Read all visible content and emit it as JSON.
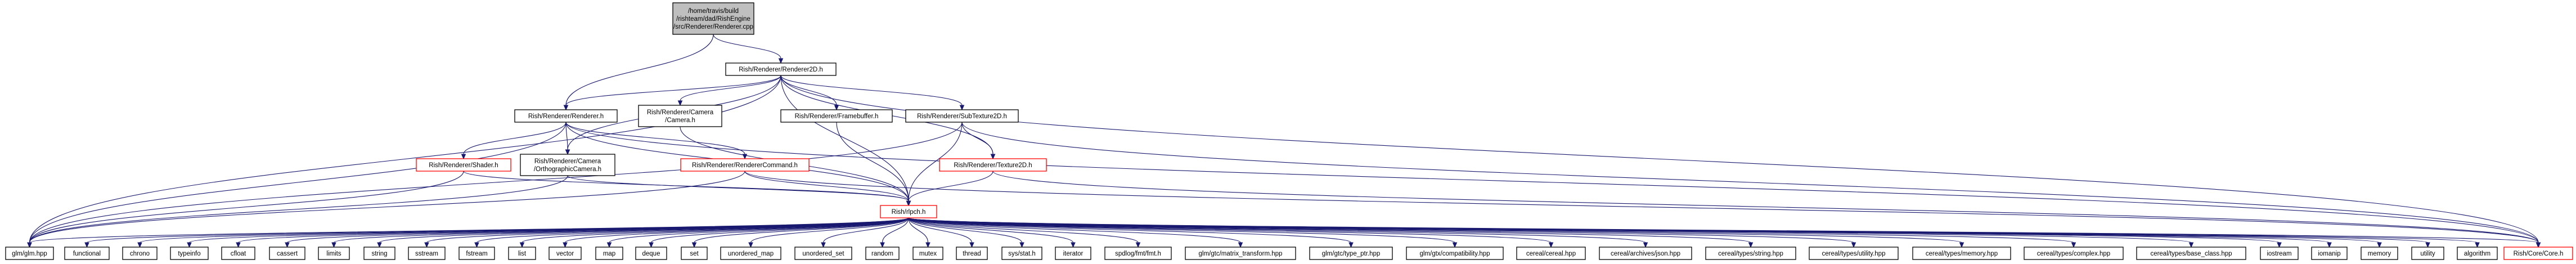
{
  "graph": {
    "root": "root",
    "nodes": [
      {
        "id": "root",
        "lines": [
          "/home/travis/build",
          "/rishteam/dad/RishEngine",
          "/src/Renderer/Renderer.cpp"
        ],
        "style": "root"
      },
      {
        "id": "renderer2d",
        "lines": [
          "Rish/Renderer/Renderer2D.h"
        ],
        "style": "normal"
      },
      {
        "id": "renderer",
        "lines": [
          "Rish/Renderer/Renderer.h"
        ],
        "style": "normal"
      },
      {
        "id": "camera",
        "lines": [
          "Rish/Renderer/Camera",
          "/Camera.h"
        ],
        "style": "normal"
      },
      {
        "id": "framebuffer",
        "lines": [
          "Rish/Renderer/Framebuffer.h"
        ],
        "style": "normal"
      },
      {
        "id": "subtexture",
        "lines": [
          "Rish/Renderer/SubTexture2D.h"
        ],
        "style": "normal"
      },
      {
        "id": "shader",
        "lines": [
          "Rish/Renderer/Shader.h"
        ],
        "style": "red"
      },
      {
        "id": "orthocam",
        "lines": [
          "Rish/Renderer/Camera",
          "/OrthographicCamera.h"
        ],
        "style": "normal"
      },
      {
        "id": "rendercmd",
        "lines": [
          "Rish/Renderer/RendererCommand.h"
        ],
        "style": "red"
      },
      {
        "id": "texture2d",
        "lines": [
          "Rish/Renderer/Texture2D.h"
        ],
        "style": "red"
      },
      {
        "id": "rlpch",
        "lines": [
          "Rish/rlpch.h"
        ],
        "style": "red"
      },
      {
        "id": "glm",
        "lines": [
          "glm/glm.hpp"
        ],
        "style": "normal"
      },
      {
        "id": "functional",
        "lines": [
          "functional"
        ],
        "style": "normal"
      },
      {
        "id": "chrono",
        "lines": [
          "chrono"
        ],
        "style": "normal"
      },
      {
        "id": "typeinfo",
        "lines": [
          "typeinfo"
        ],
        "style": "normal"
      },
      {
        "id": "cfloat",
        "lines": [
          "cfloat"
        ],
        "style": "normal"
      },
      {
        "id": "cassert",
        "lines": [
          "cassert"
        ],
        "style": "normal"
      },
      {
        "id": "limits",
        "lines": [
          "limits"
        ],
        "style": "normal"
      },
      {
        "id": "string",
        "lines": [
          "string"
        ],
        "style": "normal"
      },
      {
        "id": "sstream",
        "lines": [
          "sstream"
        ],
        "style": "normal"
      },
      {
        "id": "fstream",
        "lines": [
          "fstream"
        ],
        "style": "normal"
      },
      {
        "id": "list",
        "lines": [
          "list"
        ],
        "style": "normal"
      },
      {
        "id": "vector",
        "lines": [
          "vector"
        ],
        "style": "normal"
      },
      {
        "id": "map",
        "lines": [
          "map"
        ],
        "style": "normal"
      },
      {
        "id": "deque",
        "lines": [
          "deque"
        ],
        "style": "normal"
      },
      {
        "id": "set",
        "lines": [
          "set"
        ],
        "style": "normal"
      },
      {
        "id": "unordered_map",
        "lines": [
          "unordered_map"
        ],
        "style": "normal"
      },
      {
        "id": "unordered_set",
        "lines": [
          "unordered_set"
        ],
        "style": "normal"
      },
      {
        "id": "random",
        "lines": [
          "random"
        ],
        "style": "normal"
      },
      {
        "id": "mutex",
        "lines": [
          "mutex"
        ],
        "style": "normal"
      },
      {
        "id": "thread",
        "lines": [
          "thread"
        ],
        "style": "normal"
      },
      {
        "id": "sysstat",
        "lines": [
          "sys/stat.h"
        ],
        "style": "normal"
      },
      {
        "id": "iterator",
        "lines": [
          "iterator"
        ],
        "style": "normal"
      },
      {
        "id": "spdlog",
        "lines": [
          "spdlog/fmt/fmt.h"
        ],
        "style": "normal"
      },
      {
        "id": "glmmt",
        "lines": [
          "glm/gtc/matrix_transform.hpp"
        ],
        "style": "normal"
      },
      {
        "id": "glmtypeptr",
        "lines": [
          "glm/gtc/type_ptr.hpp"
        ],
        "style": "normal"
      },
      {
        "id": "glmcompat",
        "lines": [
          "glm/gtx/compatibility.hpp"
        ],
        "style": "normal"
      },
      {
        "id": "cereal",
        "lines": [
          "cereal/cereal.hpp"
        ],
        "style": "normal"
      },
      {
        "id": "cerealjson",
        "lines": [
          "cereal/archives/json.hpp"
        ],
        "style": "normal"
      },
      {
        "id": "cerealstring",
        "lines": [
          "cereal/types/string.hpp"
        ],
        "style": "normal"
      },
      {
        "id": "cerealutility",
        "lines": [
          "cereal/types/utility.hpp"
        ],
        "style": "normal"
      },
      {
        "id": "cerealmemory",
        "lines": [
          "cereal/types/memory.hpp"
        ],
        "style": "normal"
      },
      {
        "id": "cerealcomplex",
        "lines": [
          "cereal/types/complex.hpp"
        ],
        "style": "normal"
      },
      {
        "id": "cerealbase",
        "lines": [
          "cereal/types/base_class.hpp"
        ],
        "style": "normal"
      },
      {
        "id": "iostream",
        "lines": [
          "iostream"
        ],
        "style": "normal"
      },
      {
        "id": "iomanip",
        "lines": [
          "iomanip"
        ],
        "style": "normal"
      },
      {
        "id": "memory",
        "lines": [
          "memory"
        ],
        "style": "normal"
      },
      {
        "id": "utility",
        "lines": [
          "utility"
        ],
        "style": "normal"
      },
      {
        "id": "algorithm",
        "lines": [
          "algorithm"
        ],
        "style": "normal"
      },
      {
        "id": "corecore",
        "lines": [
          "Rish/Core/Core.h"
        ],
        "style": "red"
      }
    ],
    "edges": [
      [
        "root",
        "renderer2d"
      ],
      [
        "root",
        "renderer"
      ],
      [
        "renderer2d",
        "renderer"
      ],
      [
        "renderer2d",
        "camera"
      ],
      [
        "renderer2d",
        "framebuffer"
      ],
      [
        "renderer2d",
        "subtexture"
      ],
      [
        "renderer2d",
        "orthocam"
      ],
      [
        "renderer2d",
        "rlpch"
      ],
      [
        "renderer2d",
        "texture2d"
      ],
      [
        "renderer2d",
        "corecore"
      ],
      [
        "renderer2d",
        "glm"
      ],
      [
        "renderer",
        "shader"
      ],
      [
        "renderer",
        "orthocam"
      ],
      [
        "renderer",
        "rendercmd"
      ],
      [
        "renderer",
        "rlpch"
      ],
      [
        "renderer",
        "glm"
      ],
      [
        "renderer",
        "corecore"
      ],
      [
        "camera",
        "rlpch"
      ],
      [
        "framebuffer",
        "rlpch"
      ],
      [
        "subtexture",
        "texture2d"
      ],
      [
        "subtexture",
        "rlpch"
      ],
      [
        "subtexture",
        "glm"
      ],
      [
        "subtexture",
        "corecore"
      ],
      [
        "shader",
        "rlpch"
      ],
      [
        "shader",
        "glm"
      ],
      [
        "orthocam",
        "rlpch"
      ],
      [
        "orthocam",
        "glm"
      ],
      [
        "rendercmd",
        "rlpch"
      ],
      [
        "rendercmd",
        "corecore"
      ],
      [
        "rendercmd",
        "glm"
      ],
      [
        "texture2d",
        "rlpch"
      ],
      [
        "texture2d",
        "corecore"
      ],
      [
        "rlpch",
        "glm"
      ],
      [
        "rlpch",
        "functional"
      ],
      [
        "rlpch",
        "chrono"
      ],
      [
        "rlpch",
        "typeinfo"
      ],
      [
        "rlpch",
        "cfloat"
      ],
      [
        "rlpch",
        "cassert"
      ],
      [
        "rlpch",
        "limits"
      ],
      [
        "rlpch",
        "string"
      ],
      [
        "rlpch",
        "sstream"
      ],
      [
        "rlpch",
        "fstream"
      ],
      [
        "rlpch",
        "list"
      ],
      [
        "rlpch",
        "vector"
      ],
      [
        "rlpch",
        "map"
      ],
      [
        "rlpch",
        "deque"
      ],
      [
        "rlpch",
        "set"
      ],
      [
        "rlpch",
        "unordered_map"
      ],
      [
        "rlpch",
        "unordered_set"
      ],
      [
        "rlpch",
        "random"
      ],
      [
        "rlpch",
        "mutex"
      ],
      [
        "rlpch",
        "thread"
      ],
      [
        "rlpch",
        "sysstat"
      ],
      [
        "rlpch",
        "iterator"
      ],
      [
        "rlpch",
        "spdlog"
      ],
      [
        "rlpch",
        "glmmt"
      ],
      [
        "rlpch",
        "glmtypeptr"
      ],
      [
        "rlpch",
        "glmcompat"
      ],
      [
        "rlpch",
        "cereal"
      ],
      [
        "rlpch",
        "cerealjson"
      ],
      [
        "rlpch",
        "cerealstring"
      ],
      [
        "rlpch",
        "cerealutility"
      ],
      [
        "rlpch",
        "cerealmemory"
      ],
      [
        "rlpch",
        "cerealcomplex"
      ],
      [
        "rlpch",
        "cerealbase"
      ],
      [
        "rlpch",
        "iostream"
      ],
      [
        "rlpch",
        "iomanip"
      ],
      [
        "rlpch",
        "memory"
      ],
      [
        "rlpch",
        "utility"
      ],
      [
        "rlpch",
        "algorithm"
      ],
      [
        "rlpch",
        "corecore"
      ]
    ]
  },
  "colors": {
    "edge": "#191970",
    "node_border": "#000000",
    "node_border_incomplete": "#ff0000",
    "root_fill": "#bfbfbf",
    "node_fill": "#ffffff"
  }
}
